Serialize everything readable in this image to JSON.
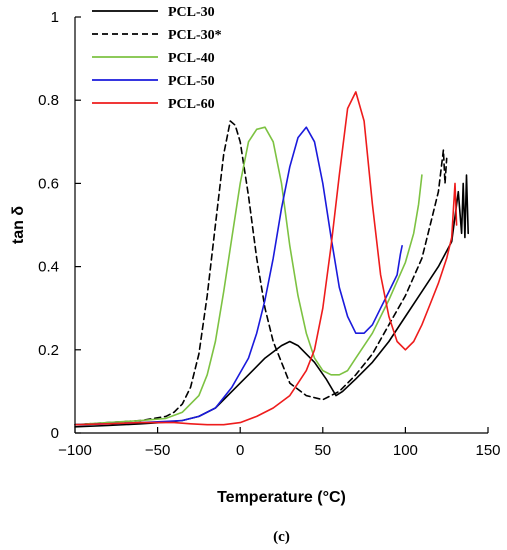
{
  "chart_data": {
    "type": "line",
    "xlabel": "Temperature (°C)",
    "ylabel": "tan δ",
    "xlim": [
      -100,
      150
    ],
    "ylim": [
      0,
      1
    ],
    "x_ticks": [
      -100,
      -50,
      0,
      50,
      100,
      150
    ],
    "y_ticks": [
      0,
      0.2,
      0.4,
      0.6,
      0.8,
      1
    ],
    "x_tick_labels": [
      "−100",
      "−50",
      "0",
      "50",
      "100",
      "150"
    ],
    "y_tick_labels": [
      "0",
      "0.2",
      "0.4",
      "0.6",
      "0.8",
      "1"
    ],
    "grid": false,
    "legend_position": "top-left",
    "panel_label": "(c)",
    "series": [
      {
        "name": "PCL-30",
        "color": "#000000",
        "dash": "solid",
        "x": [
          -100,
          -80,
          -60,
          -45,
          -35,
          -25,
          -15,
          -5,
          5,
          15,
          25,
          30,
          35,
          45,
          52,
          58,
          62,
          70,
          80,
          90,
          100,
          110,
          120,
          128,
          132,
          134,
          135,
          136,
          137,
          138
        ],
        "y": [
          0.015,
          0.018,
          0.022,
          0.026,
          0.03,
          0.04,
          0.06,
          0.1,
          0.14,
          0.18,
          0.21,
          0.22,
          0.21,
          0.17,
          0.13,
          0.09,
          0.1,
          0.13,
          0.17,
          0.22,
          0.28,
          0.34,
          0.4,
          0.46,
          0.58,
          0.48,
          0.6,
          0.47,
          0.62,
          0.48
        ]
      },
      {
        "name": "PCL-30*",
        "color": "#000000",
        "dash": "dashed",
        "x": [
          -100,
          -80,
          -60,
          -45,
          -40,
          -35,
          -30,
          -25,
          -20,
          -15,
          -10,
          -6,
          -3,
          0,
          5,
          10,
          15,
          20,
          25,
          30,
          40,
          50,
          60,
          70,
          80,
          90,
          100,
          110,
          115,
          120,
          123,
          124,
          125
        ],
        "y": [
          0.02,
          0.025,
          0.03,
          0.04,
          0.05,
          0.07,
          0.11,
          0.19,
          0.33,
          0.5,
          0.67,
          0.75,
          0.74,
          0.7,
          0.57,
          0.42,
          0.3,
          0.22,
          0.17,
          0.12,
          0.09,
          0.08,
          0.1,
          0.14,
          0.19,
          0.26,
          0.33,
          0.42,
          0.5,
          0.58,
          0.68,
          0.6,
          0.66
        ]
      },
      {
        "name": "PCL-40",
        "color": "#7dc242",
        "dash": "solid",
        "x": [
          -100,
          -80,
          -60,
          -45,
          -35,
          -25,
          -20,
          -15,
          -10,
          -5,
          0,
          5,
          10,
          15,
          20,
          25,
          30,
          35,
          40,
          45,
          50,
          55,
          60,
          65,
          70,
          80,
          90,
          100,
          105,
          108,
          110
        ],
        "y": [
          0.02,
          0.025,
          0.03,
          0.035,
          0.05,
          0.09,
          0.14,
          0.22,
          0.34,
          0.47,
          0.6,
          0.7,
          0.73,
          0.735,
          0.7,
          0.6,
          0.45,
          0.33,
          0.24,
          0.18,
          0.15,
          0.14,
          0.14,
          0.15,
          0.18,
          0.24,
          0.32,
          0.41,
          0.48,
          0.55,
          0.62
        ]
      },
      {
        "name": "PCL-50",
        "color": "#1a1adc",
        "dash": "solid",
        "x": [
          -100,
          -80,
          -60,
          -45,
          -35,
          -25,
          -15,
          -5,
          5,
          10,
          15,
          20,
          25,
          30,
          35,
          40,
          45,
          50,
          55,
          60,
          65,
          70,
          75,
          80,
          85,
          90,
          95,
          97,
          98
        ],
        "y": [
          0.02,
          0.022,
          0.025,
          0.028,
          0.03,
          0.04,
          0.06,
          0.11,
          0.18,
          0.24,
          0.32,
          0.42,
          0.54,
          0.64,
          0.71,
          0.735,
          0.7,
          0.6,
          0.47,
          0.35,
          0.28,
          0.24,
          0.24,
          0.26,
          0.3,
          0.34,
          0.38,
          0.43,
          0.45
        ]
      },
      {
        "name": "PCL-60",
        "color": "#ee1c1c",
        "dash": "solid",
        "x": [
          -100,
          -80,
          -60,
          -40,
          -30,
          -20,
          -10,
          0,
          10,
          20,
          30,
          40,
          45,
          50,
          55,
          60,
          65,
          70,
          75,
          80,
          85,
          90,
          95,
          100,
          105,
          110,
          115,
          120,
          125,
          128,
          130,
          131
        ],
        "y": [
          0.02,
          0.022,
          0.025,
          0.025,
          0.022,
          0.02,
          0.02,
          0.025,
          0.04,
          0.06,
          0.09,
          0.15,
          0.2,
          0.3,
          0.45,
          0.62,
          0.78,
          0.82,
          0.75,
          0.55,
          0.38,
          0.28,
          0.22,
          0.2,
          0.22,
          0.26,
          0.31,
          0.36,
          0.42,
          0.47,
          0.6,
          0.5
        ]
      }
    ]
  }
}
